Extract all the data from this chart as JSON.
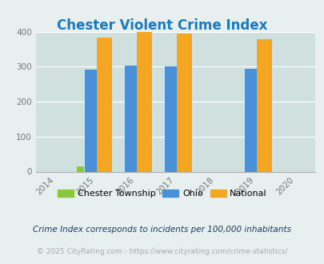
{
  "title": "Chester Violent Crime Index",
  "title_color": "#1a7abf",
  "years": [
    2014,
    2015,
    2016,
    2017,
    2018,
    2019,
    2020
  ],
  "data_years": [
    2015,
    2016,
    2017,
    2019
  ],
  "chester": [
    14,
    0,
    0,
    0
  ],
  "ohio": [
    292,
    302,
    300,
    295
  ],
  "national": [
    384,
    399,
    394,
    379
  ],
  "chester_color": "#8dc63f",
  "ohio_color": "#4a90d9",
  "national_color": "#f5a623",
  "bg_color": "#e8f0ef",
  "plot_bg": "#cfe0de",
  "ylim": [
    0,
    400
  ],
  "yticks": [
    0,
    100,
    200,
    300,
    400
  ],
  "bar_width": 0.38,
  "legend_labels": [
    "Chester Township",
    "Ohio",
    "National"
  ],
  "footnote1": "Crime Index corresponds to incidents per 100,000 inhabitants",
  "footnote2": "© 2025 CityRating.com - https://www.cityrating.com/crime-statistics/",
  "footnote1_color": "#1a3a5c",
  "footnote2_color": "#aaaaaa"
}
